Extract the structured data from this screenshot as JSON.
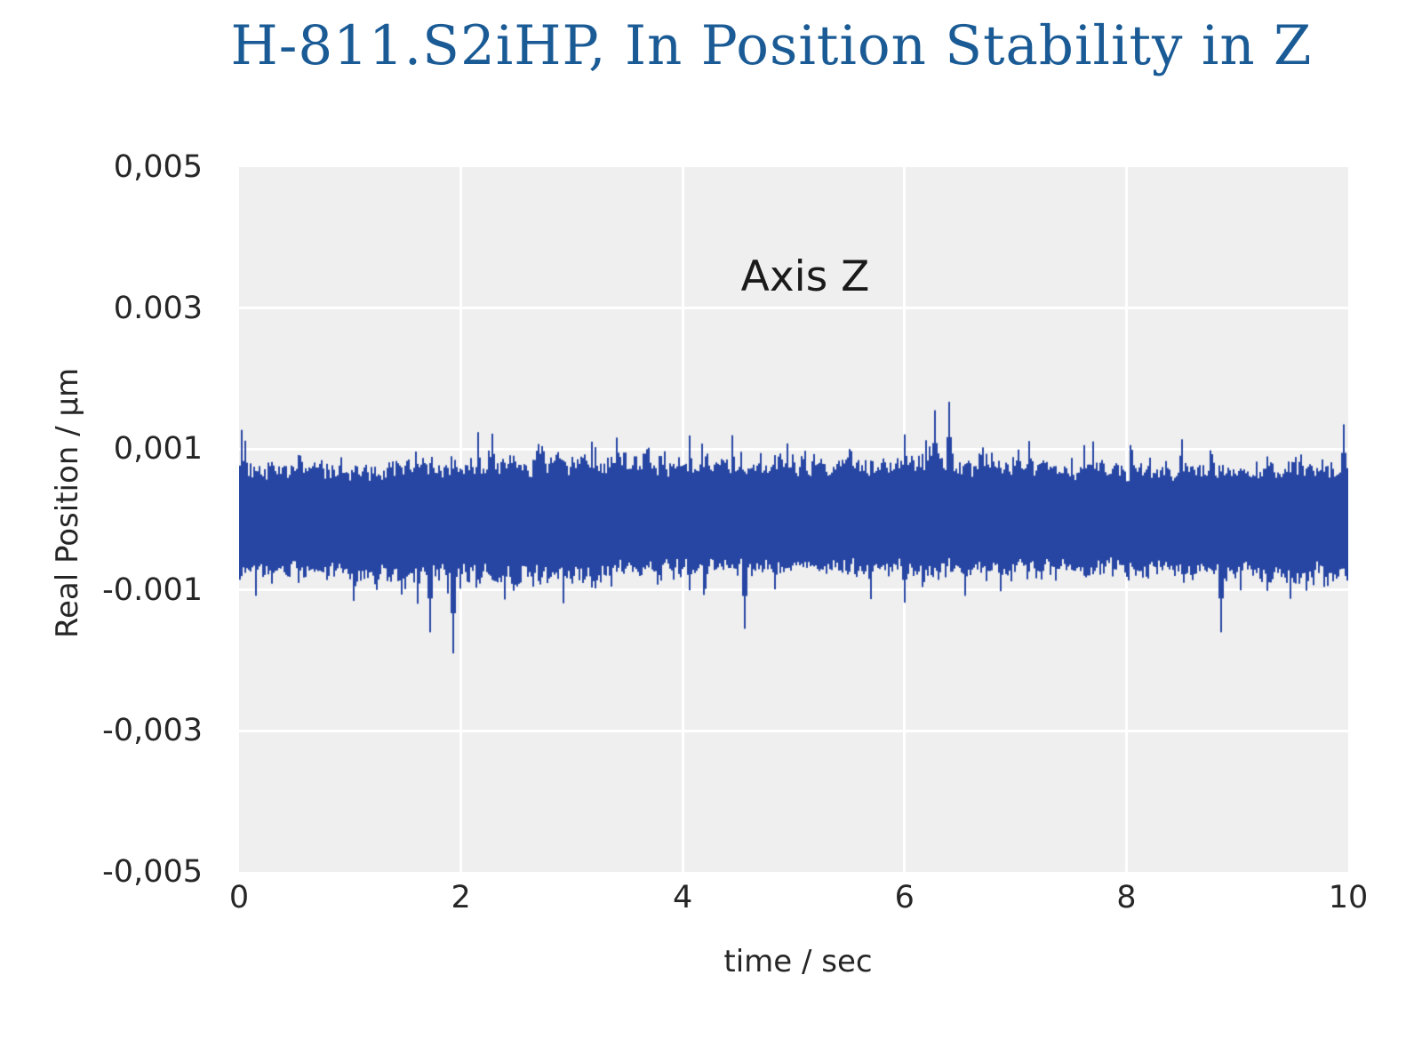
{
  "chart_data": {
    "type": "line",
    "title": "H-811.S2iHP, In Position Stability in Z",
    "xlabel": "time / sec",
    "ylabel": "Real Position / µm",
    "annotation": "Axis Z",
    "xlim": [
      0,
      10
    ],
    "ylim": [
      -0.005,
      0.005
    ],
    "xtick_values": [
      0,
      2,
      4,
      6,
      8,
      10
    ],
    "xtick_labels": [
      "0",
      "2",
      "4",
      "6",
      "8",
      "10"
    ],
    "ytick_values": [
      0.005,
      0.003,
      0.001,
      -0.001,
      -0.003,
      -0.005
    ],
    "ytick_labels": [
      "0,005",
      "0.003",
      "0,001",
      "-0.001",
      "-0,003",
      "-0,005"
    ],
    "grid": true,
    "legend": false,
    "colors": {
      "line": "#2746A4",
      "title": "#1A5B96",
      "plot_background": "#EFEFEF",
      "gridline": "#FFFFFF",
      "tick_text": "#262626",
      "page_background": "#FFFFFF"
    },
    "series": [
      {
        "name": "Axis Z",
        "kind": "noise_band",
        "mean_um": 0,
        "core_halfwidth_um": 0.0008,
        "typical_peak_um": 0.0011,
        "max_spike_up_um": 0.0017,
        "max_spike_down_um": -0.0019,
        "spike_probability": 0.06,
        "min_halfwidth_um": 0.00035,
        "seed": 987653,
        "feature_spikes": [
          {
            "t_sec": 1.93,
            "value_um": -0.0019
          },
          {
            "t_sec": 1.72,
            "value_um": -0.0016
          },
          {
            "t_sec": 6.4,
            "value_um": 0.00167
          },
          {
            "t_sec": 6.27,
            "value_um": 0.00155
          },
          {
            "t_sec": 8.85,
            "value_um": -0.0016
          },
          {
            "t_sec": 4.55,
            "value_um": -0.00155
          },
          {
            "t_sec": 9.95,
            "value_um": 0.00135
          }
        ]
      }
    ]
  }
}
